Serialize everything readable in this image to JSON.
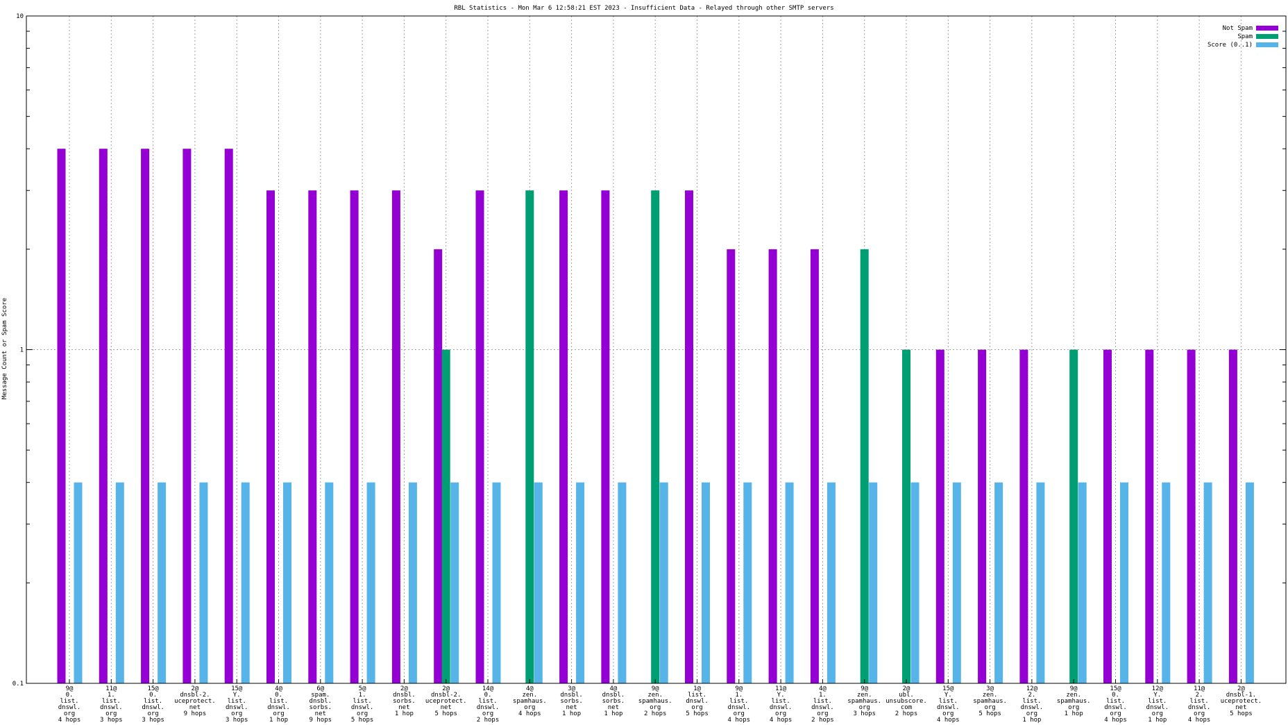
{
  "chart_data": {
    "type": "bar",
    "title": "RBL Statistics - Mon Mar  6 12:58:21 EST 2023 - Insufficient Data - Relayed through other SMTP servers",
    "ylabel": "Message Count or Spam Score",
    "xlabel": "",
    "yscale": "log",
    "ylim": [
      0.1,
      10
    ],
    "yticks": [
      "0.1",
      "1",
      "10"
    ],
    "grid": true,
    "legend_position": "top-right",
    "categories": [
      [
        "9@",
        "0.",
        "list.",
        "dnswl.",
        "org",
        "4 hops"
      ],
      [
        "11@",
        "1.",
        "list.",
        "dnswl.",
        "org",
        "3 hops"
      ],
      [
        "15@",
        "0.",
        "list.",
        "dnswl.",
        "org",
        "3 hops"
      ],
      [
        "2@",
        "dnsbl-2.",
        "uceprotect.",
        "net",
        "9 hops"
      ],
      [
        "15@",
        "Y.",
        "list.",
        "dnswl.",
        "org",
        "3 hops"
      ],
      [
        "4@",
        "0.",
        "list.",
        "dnswl.",
        "org",
        "1 hop"
      ],
      [
        "6@",
        "spam.",
        "dnsbl.",
        "sorbs.",
        "net",
        "9 hops"
      ],
      [
        "5@",
        "1.",
        "list.",
        "dnswl.",
        "org",
        "5 hops"
      ],
      [
        "2@",
        "dnsbl.",
        "sorbs.",
        "net",
        "1 hop"
      ],
      [
        "2@",
        "dnsbl-2.",
        "uceprotect.",
        "net",
        "5 hops"
      ],
      [
        "14@",
        "0.",
        "list.",
        "dnswl.",
        "org",
        "2 hops"
      ],
      [
        "4@",
        "zen.",
        "spamhaus.",
        "org",
        "4 hops"
      ],
      [
        "3@",
        "dnsbl.",
        "sorbs.",
        "net",
        "1 hop"
      ],
      [
        "4@",
        "dnsbl.",
        "sorbs.",
        "net",
        "1 hop"
      ],
      [
        "9@",
        "zen.",
        "spamhaus.",
        "org",
        "2 hops"
      ],
      [
        "1@",
        "list.",
        "dnswl.",
        "org",
        "5 hops"
      ],
      [
        "9@",
        "1.",
        "list.",
        "dnswl.",
        "org",
        "4 hops"
      ],
      [
        "11@",
        "Y.",
        "list.",
        "dnswl.",
        "org",
        "4 hops"
      ],
      [
        "4@",
        "1.",
        "list.",
        "dnswl.",
        "org",
        "2 hops"
      ],
      [
        "9@",
        "zen.",
        "spamhaus.",
        "org",
        "3 hops"
      ],
      [
        "2@",
        "ubl.",
        "unsubscore.",
        "com",
        "2 hops"
      ],
      [
        "15@",
        "Y.",
        "list.",
        "dnswl.",
        "org",
        "4 hops"
      ],
      [
        "3@",
        "zen.",
        "spamhaus.",
        "org",
        "5 hops"
      ],
      [
        "12@",
        "2.",
        "list.",
        "dnswl.",
        "org",
        "1 hop"
      ],
      [
        "9@",
        "zen.",
        "spamhaus.",
        "org",
        "1 hop"
      ],
      [
        "15@",
        "0.",
        "list.",
        "dnswl.",
        "org",
        "4 hops"
      ],
      [
        "12@",
        "Y.",
        "list.",
        "dnswl.",
        "org",
        "1 hop"
      ],
      [
        "11@",
        "2.",
        "list.",
        "dnswl.",
        "org",
        "4 hops"
      ],
      [
        "2@",
        "dnsbl-1.",
        "uceprotect.",
        "net",
        "5 hops"
      ]
    ],
    "series": [
      {
        "name": "Not Spam",
        "color": "#9400d3",
        "values": [
          4,
          4,
          4,
          4,
          4,
          3,
          3,
          3,
          3,
          2,
          3,
          0,
          3,
          3,
          0,
          3,
          2,
          2,
          2,
          0,
          0,
          1,
          1,
          1,
          0,
          1,
          1,
          1,
          1
        ]
      },
      {
        "name": "Spam",
        "color": "#009e73",
        "values": [
          0,
          0,
          0,
          0,
          0,
          0,
          0,
          0,
          0,
          1,
          0,
          3,
          0,
          0,
          3,
          0,
          0,
          0,
          0,
          2,
          1,
          0,
          0,
          0,
          1,
          0,
          0,
          0,
          0
        ]
      },
      {
        "name": "Score (0..1)",
        "color": "#56b4e9",
        "values": [
          0.4,
          0.4,
          0.4,
          0.4,
          0.4,
          0.4,
          0.4,
          0.4,
          0.4,
          0.4,
          0.4,
          0.4,
          0.4,
          0.4,
          0.4,
          0.4,
          0.4,
          0.4,
          0.4,
          0.4,
          0.4,
          0.4,
          0.4,
          0.4,
          0.4,
          0.4,
          0.4,
          0.4,
          0.4
        ]
      }
    ]
  }
}
